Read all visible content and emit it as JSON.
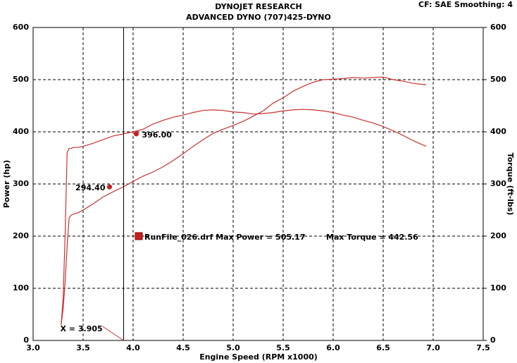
{
  "chart_data": {
    "type": "line",
    "title": "DYNOJET RESEARCH",
    "subtitle": "ADVANCED DYNO (707)425-DYNO",
    "settings_label": "CF: SAE  Smoothing: 4",
    "x_label": "Engine Speed (RPM x1000)",
    "y_label": "Power (hp)",
    "y2_label": "Torque (ft-lbs)",
    "x": [
      3.28,
      3.3,
      3.32,
      3.34,
      3.36,
      3.38,
      3.4,
      3.45,
      3.5,
      3.6,
      3.7,
      3.8,
      3.9,
      4.0,
      4.1,
      4.2,
      4.3,
      4.4,
      4.5,
      4.6,
      4.7,
      4.8,
      4.9,
      5.0,
      5.1,
      5.2,
      5.3,
      5.4,
      5.5,
      5.6,
      5.7,
      5.8,
      5.9,
      6.0,
      6.1,
      6.2,
      6.3,
      6.4,
      6.5,
      6.6,
      6.7,
      6.8,
      6.93
    ],
    "series": [
      {
        "color": "#c83232",
        "values": [
          30,
          60,
          110,
          180,
          235,
          240,
          242,
          245,
          250,
          262,
          275,
          285,
          294,
          305,
          315,
          323,
          333,
          345,
          358,
          372,
          385,
          397,
          405,
          412,
          420,
          430,
          440,
          455,
          465,
          478,
          487,
          495,
          500,
          501,
          502,
          504,
          503,
          504,
          505,
          500,
          497,
          493,
          490
        ]
      },
      {
        "color": "#c83232",
        "axis": "y2",
        "values": [
          30,
          80,
          200,
          360,
          368,
          368,
          370,
          370,
          372,
          378,
          385,
          392,
          396,
          400,
          405,
          415,
          422,
          428,
          432,
          437,
          441,
          442,
          441,
          438,
          437,
          434,
          435,
          437,
          440,
          442,
          443,
          442,
          440,
          437,
          432,
          428,
          422,
          417,
          410,
          402,
          393,
          383,
          372
        ]
      }
    ],
    "cursor": {
      "value": 3.905,
      "label": "X = 3.905"
    },
    "cursor_values": [
      {
        "value": 294.4,
        "label": "294.40"
      },
      {
        "value": 396,
        "label": "396.00"
      }
    ],
    "legend": {
      "color": "#c81e1e",
      "run": "RunFile_026.drf Max Power = 505.17",
      "torque": "Max Torque = 442.56"
    },
    "xlim": [
      3.0,
      7.5
    ],
    "xticks": [
      {
        "value": 3.0,
        "label": "3.0"
      },
      {
        "value": 3.5,
        "label": "3.5"
      },
      {
        "value": 4.0,
        "label": "4.0"
      },
      {
        "value": 4.5,
        "label": "4.5"
      },
      {
        "value": 5.0,
        "label": "5.0"
      },
      {
        "value": 5.5,
        "label": "5.5"
      },
      {
        "value": 6.0,
        "label": "6.0"
      },
      {
        "value": 6.5,
        "label": "6.5"
      },
      {
        "value": 7.0,
        "label": "7.0"
      },
      {
        "value": 7.5,
        "label": "7.5"
      }
    ],
    "ylim": [
      0,
      600
    ],
    "yticks": [
      0,
      100,
      200,
      300,
      400,
      500,
      600
    ],
    "y2lim": [
      0,
      600
    ],
    "y2ticks": [
      0,
      100,
      200,
      300,
      400,
      500,
      600
    ],
    "grid": true
  }
}
